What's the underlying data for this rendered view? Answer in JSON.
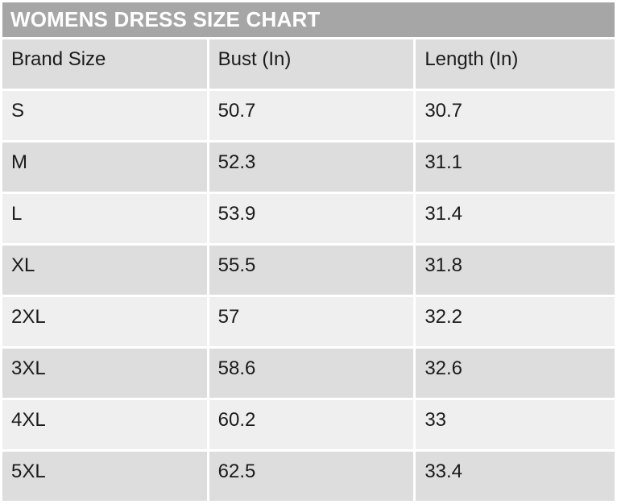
{
  "title": "WOMENS DRESS SIZE CHART",
  "table": {
    "header": [
      "Brand Size",
      "Bust (In)",
      "Length (In)"
    ],
    "rows": [
      [
        "S",
        "50.7",
        "30.7"
      ],
      [
        "M",
        "52.3",
        "31.1"
      ],
      [
        "L",
        "53.9",
        "31.4"
      ],
      [
        "XL",
        "55.5",
        "31.8"
      ],
      [
        "2XL",
        "57",
        "32.2"
      ],
      [
        "3XL",
        "58.6",
        "32.6"
      ],
      [
        "4XL",
        "60.2",
        "33"
      ],
      [
        "5XL",
        "62.5",
        "33.4"
      ]
    ]
  },
  "colors": {
    "title_bar_bg": "#a6a6a6",
    "title_text": "#ffffff",
    "band_dark": "#dedddd",
    "band_light": "#f0efef",
    "cell_text": "#1b1b1b",
    "page_bg": "#ffffff"
  },
  "chart_data": {
    "type": "table",
    "title": "WOMENS DRESS SIZE CHART",
    "columns": [
      "Brand Size",
      "Bust (In)",
      "Length (In)"
    ],
    "categories": [
      "S",
      "M",
      "L",
      "XL",
      "2XL",
      "3XL",
      "4XL",
      "5XL"
    ],
    "series": [
      {
        "name": "Bust (In)",
        "values": [
          50.7,
          52.3,
          53.9,
          55.5,
          57,
          58.6,
          60.2,
          62.5
        ]
      },
      {
        "name": "Length (In)",
        "values": [
          30.7,
          31.1,
          31.4,
          31.8,
          32.2,
          32.6,
          33,
          33.4
        ]
      }
    ],
    "layout": {
      "banded_rows": true,
      "header_band_color": "#a6a6a6",
      "grid": false
    }
  }
}
